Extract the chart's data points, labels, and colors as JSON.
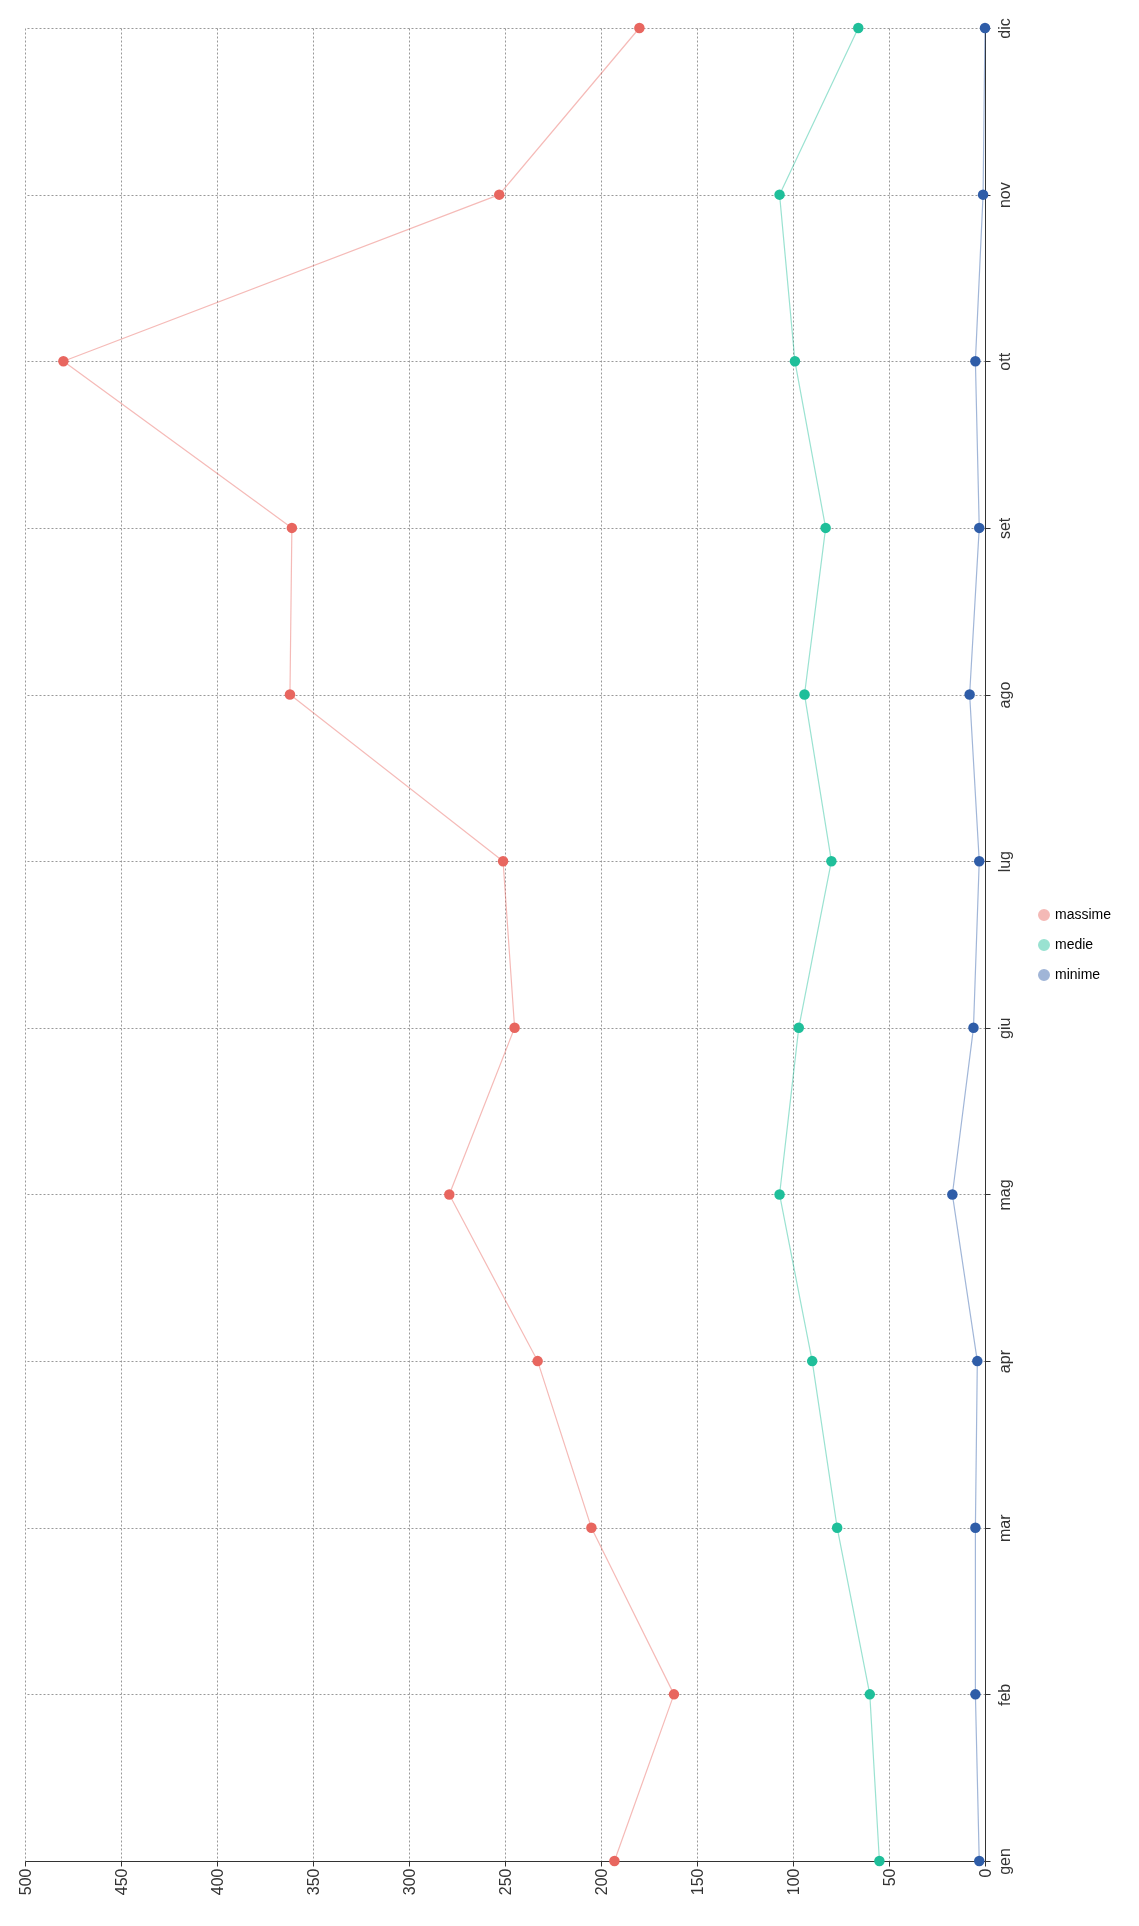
{
  "chart_data": {
    "type": "line",
    "orientation": "horizontal",
    "categories": [
      "dic",
      "nov",
      "ott",
      "set",
      "ago",
      "lug",
      "giu",
      "mag",
      "apr",
      "mar",
      "feb",
      "gen"
    ],
    "series": [
      {
        "name": "massime",
        "color": "#e8665f",
        "values": [
          180,
          253,
          480,
          361,
          362,
          251,
          245,
          279,
          233,
          205,
          162,
          193
        ]
      },
      {
        "name": "medie",
        "color": "#1fbf9a",
        "values": [
          66,
          107,
          99,
          83,
          94,
          80,
          97,
          107,
          90,
          77,
          60,
          55
        ]
      },
      {
        "name": "minime",
        "color": "#2f5da8",
        "values": [
          0,
          1,
          5,
          3,
          8,
          3,
          6,
          17,
          4,
          5,
          5,
          3
        ]
      }
    ],
    "xlim": [
      500,
      0
    ],
    "xticks": [
      500,
      450,
      400,
      350,
      300,
      250,
      200,
      150,
      100,
      50,
      0
    ],
    "grid": true,
    "legend": "right",
    "marker": "circle",
    "line_style": "solid"
  }
}
